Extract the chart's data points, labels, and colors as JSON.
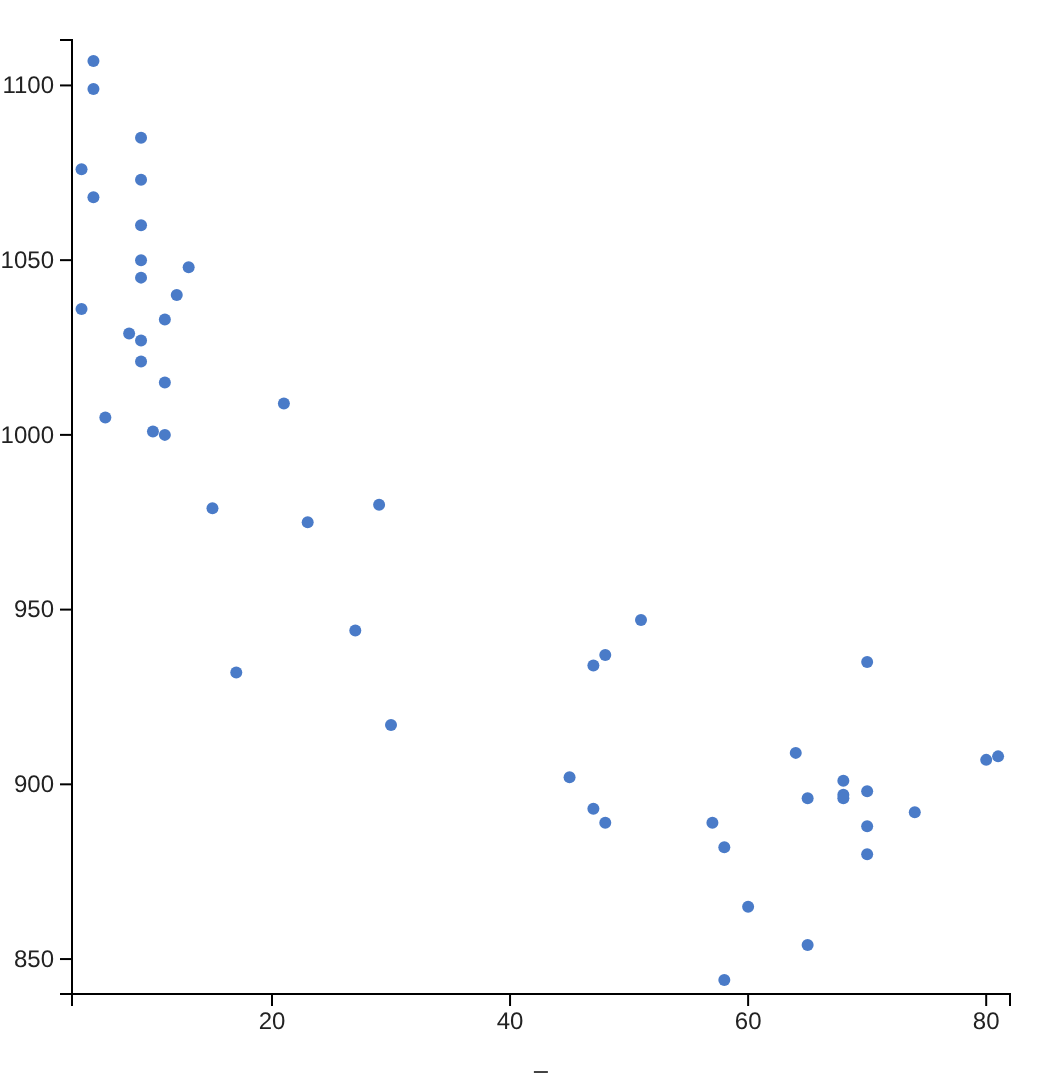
{
  "chart_data": {
    "type": "scatter",
    "xlabel": "_",
    "color": "#4a7bc8",
    "marker": "circle",
    "grid": false,
    "xlim": [
      3.2,
      82
    ],
    "ylim": [
      840,
      1113
    ],
    "xticks": [
      20,
      40,
      60,
      80
    ],
    "yticks": [
      850,
      900,
      950,
      1000,
      1050,
      1100
    ],
    "x": [
      5,
      5,
      9,
      4,
      9,
      5,
      9,
      9,
      13,
      9,
      12,
      4,
      11,
      8,
      9,
      9,
      11,
      21,
      6,
      10,
      11,
      15,
      29,
      23,
      27,
      17,
      30,
      51,
      48,
      47,
      70,
      64,
      80,
      81,
      45,
      68,
      70,
      65,
      68,
      68,
      74,
      47,
      48,
      57,
      70,
      58,
      70,
      60,
      65,
      58
    ],
    "values": [
      1107,
      1099,
      1085,
      1076,
      1073,
      1068,
      1060,
      1050,
      1048,
      1045,
      1040,
      1036,
      1033,
      1029,
      1027,
      1021,
      1015,
      1009,
      1005,
      1001,
      1000,
      979,
      980,
      975,
      944,
      932,
      917,
      947,
      937,
      934,
      935,
      909,
      907,
      908,
      902,
      901,
      898,
      896,
      897,
      896,
      892,
      893,
      889,
      889,
      888,
      882,
      880,
      865,
      854,
      844
    ]
  }
}
